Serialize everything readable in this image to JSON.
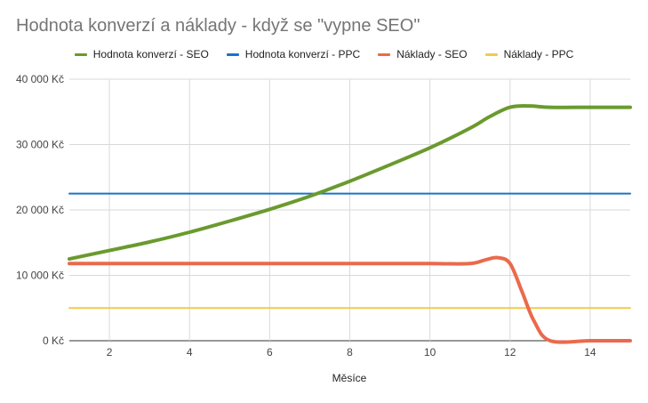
{
  "chart_data": {
    "type": "line",
    "title": "Hodnota konverzí a náklady - když se \"vypne SEO\"",
    "xlabel": "Měsíce",
    "ylabel": "",
    "xlim": [
      1,
      15
    ],
    "ylim": [
      0,
      40000
    ],
    "x_ticks": [
      2,
      4,
      6,
      8,
      10,
      12,
      14
    ],
    "y_ticks": [
      {
        "value": 0,
        "label": "0 Kč"
      },
      {
        "value": 10000,
        "label": "10 000 Kč"
      },
      {
        "value": 20000,
        "label": "20 000 Kč"
      },
      {
        "value": 30000,
        "label": "30 000 Kč"
      },
      {
        "value": 40000,
        "label": "40 000 Kč"
      }
    ],
    "grid": true,
    "legend_position": "top",
    "series": [
      {
        "name": "Hodnota konverzí - SEO",
        "color": "#6a9a2e",
        "points": [
          [
            1,
            12500
          ],
          [
            2,
            13800
          ],
          [
            3,
            15100
          ],
          [
            4,
            16600
          ],
          [
            5,
            18300
          ],
          [
            6,
            20100
          ],
          [
            7,
            22100
          ],
          [
            8,
            24400
          ],
          [
            9,
            26900
          ],
          [
            10,
            29500
          ],
          [
            11,
            32500
          ],
          [
            11.5,
            34300
          ],
          [
            12,
            35700
          ],
          [
            12.5,
            35900
          ],
          [
            13,
            35700
          ],
          [
            14,
            35700
          ],
          [
            15,
            35700
          ]
        ]
      },
      {
        "name": "Hodnota konverzí - PPC",
        "color": "#1a73c6",
        "points": [
          [
            1,
            22500
          ],
          [
            2,
            22500
          ],
          [
            3,
            22500
          ],
          [
            4,
            22500
          ],
          [
            5,
            22500
          ],
          [
            6,
            22500
          ],
          [
            7,
            22500
          ],
          [
            8,
            22500
          ],
          [
            9,
            22500
          ],
          [
            10,
            22500
          ],
          [
            11,
            22500
          ],
          [
            12,
            22500
          ],
          [
            13,
            22500
          ],
          [
            14,
            22500
          ],
          [
            15,
            22500
          ]
        ]
      },
      {
        "name": "Náklady - SEO",
        "color": "#ea6a4c",
        "points": [
          [
            1,
            11800
          ],
          [
            2,
            11800
          ],
          [
            3,
            11800
          ],
          [
            4,
            11800
          ],
          [
            5,
            11800
          ],
          [
            6,
            11800
          ],
          [
            7,
            11800
          ],
          [
            8,
            11800
          ],
          [
            9,
            11800
          ],
          [
            10,
            11800
          ],
          [
            11,
            11800
          ],
          [
            11.4,
            12400
          ],
          [
            11.7,
            12700
          ],
          [
            12,
            11800
          ],
          [
            12.3,
            7500
          ],
          [
            12.6,
            3000
          ],
          [
            13,
            0
          ],
          [
            14,
            0
          ],
          [
            15,
            0
          ]
        ]
      },
      {
        "name": "Náklady - PPC",
        "color": "#f3c94e",
        "points": [
          [
            1,
            5000
          ],
          [
            2,
            5000
          ],
          [
            3,
            5000
          ],
          [
            4,
            5000
          ],
          [
            5,
            5000
          ],
          [
            6,
            5000
          ],
          [
            7,
            5000
          ],
          [
            8,
            5000
          ],
          [
            9,
            5000
          ],
          [
            10,
            5000
          ],
          [
            11,
            5000
          ],
          [
            12,
            5000
          ],
          [
            13,
            5000
          ],
          [
            14,
            5000
          ],
          [
            15,
            5000
          ]
        ]
      }
    ]
  }
}
